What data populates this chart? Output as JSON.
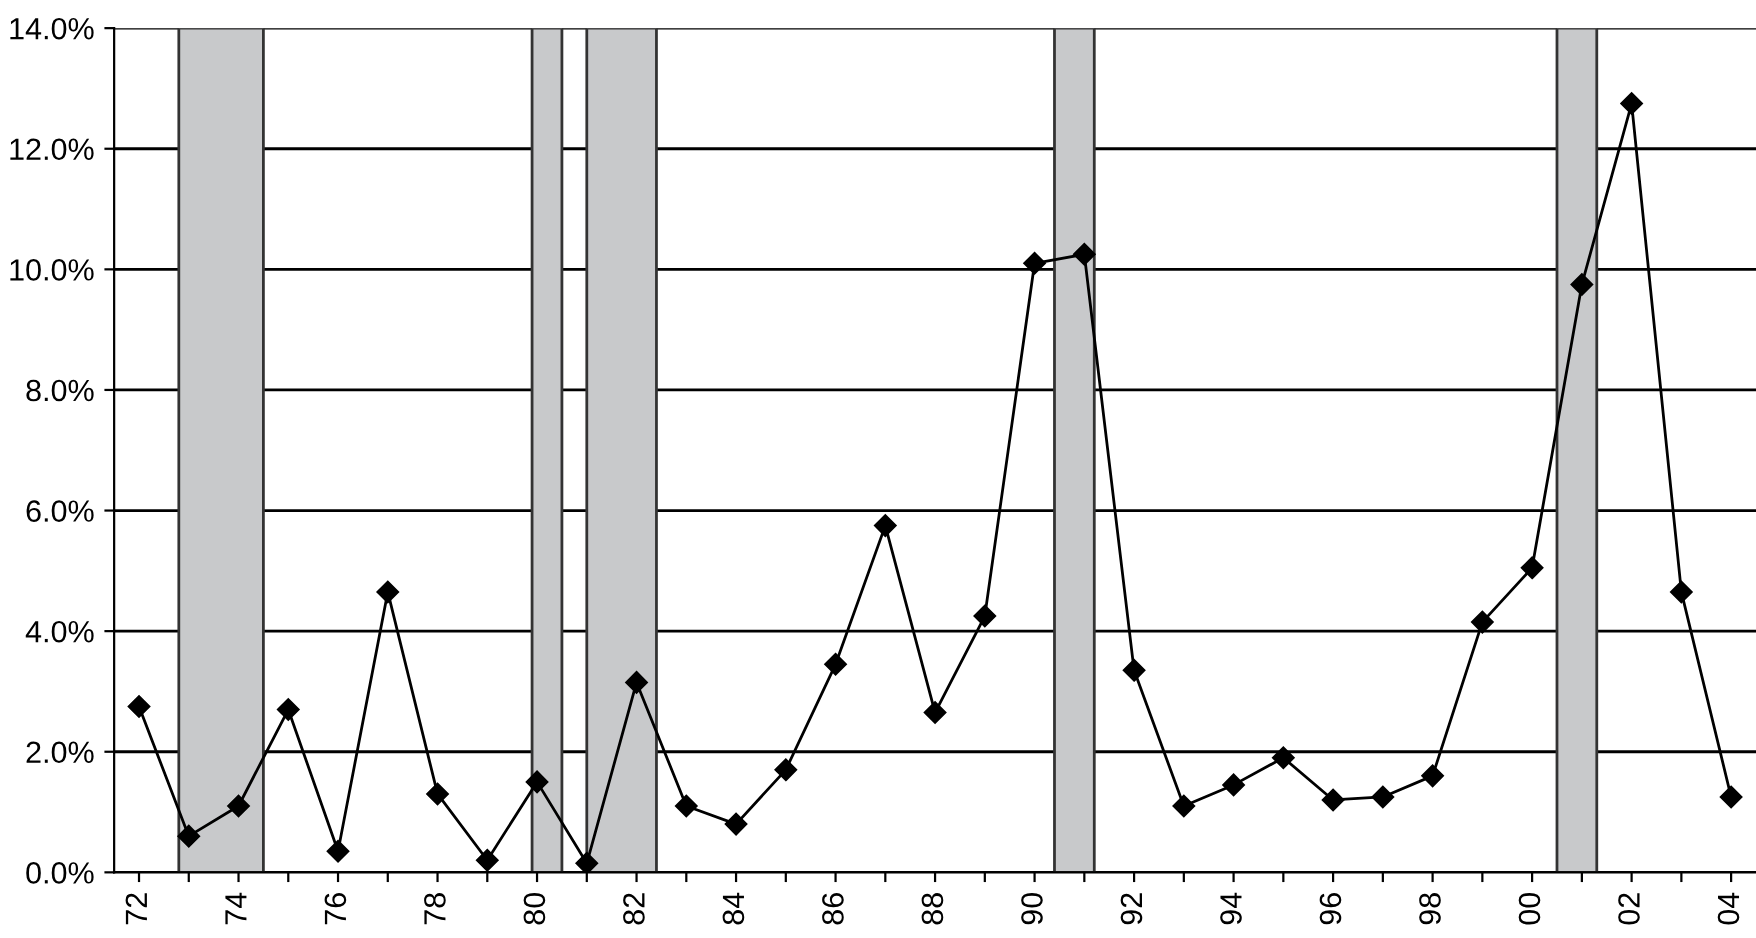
{
  "chart_data": {
    "type": "line",
    "marker": "diamond",
    "line_style": "solid",
    "grid": "y",
    "legend": false,
    "x": [
      1972,
      1973,
      1974,
      1975,
      1976,
      1977,
      1978,
      1979,
      1980,
      1981,
      1982,
      1983,
      1984,
      1985,
      1986,
      1987,
      1988,
      1989,
      1990,
      1991,
      1992,
      1993,
      1994,
      1995,
      1996,
      1997,
      1998,
      1999,
      2000,
      2001,
      2002,
      2003,
      2004
    ],
    "series": [
      {
        "color": "#000000",
        "values": [
          2.75,
          0.6,
          1.1,
          2.7,
          0.35,
          4.65,
          1.3,
          0.2,
          1.5,
          0.15,
          3.15,
          1.1,
          0.8,
          1.7,
          3.45,
          5.75,
          2.65,
          4.25,
          10.1,
          10.25,
          3.35,
          1.1,
          1.45,
          1.9,
          1.2,
          1.25,
          1.6,
          4.15,
          5.05,
          9.75,
          12.75,
          4.65,
          1.25
        ]
      }
    ],
    "xlim": [
      1971.5,
      2004.5
    ],
    "ylim": [
      0,
      14
    ],
    "xticks": [
      {
        "value": 1972,
        "label": "72"
      },
      {
        "value": 1973,
        "label": null
      },
      {
        "value": 1974,
        "label": "74"
      },
      {
        "value": 1975,
        "label": null
      },
      {
        "value": 1976,
        "label": "76"
      },
      {
        "value": 1977,
        "label": null
      },
      {
        "value": 1978,
        "label": "78"
      },
      {
        "value": 1979,
        "label": null
      },
      {
        "value": 1980,
        "label": "80"
      },
      {
        "value": 1981,
        "label": null
      },
      {
        "value": 1982,
        "label": "82"
      },
      {
        "value": 1983,
        "label": null
      },
      {
        "value": 1984,
        "label": "84"
      },
      {
        "value": 1985,
        "label": null
      },
      {
        "value": 1986,
        "label": "86"
      },
      {
        "value": 1987,
        "label": null
      },
      {
        "value": 1988,
        "label": "88"
      },
      {
        "value": 1989,
        "label": null
      },
      {
        "value": 1990,
        "label": "90"
      },
      {
        "value": 1991,
        "label": null
      },
      {
        "value": 1992,
        "label": "92"
      },
      {
        "value": 1993,
        "label": null
      },
      {
        "value": 1994,
        "label": "94"
      },
      {
        "value": 1995,
        "label": null
      },
      {
        "value": 1996,
        "label": "96"
      },
      {
        "value": 1997,
        "label": null
      },
      {
        "value": 1998,
        "label": "98"
      },
      {
        "value": 1999,
        "label": null
      },
      {
        "value": 2000,
        "label": "00"
      },
      {
        "value": 2001,
        "label": null
      },
      {
        "value": 2002,
        "label": "02"
      },
      {
        "value": 2003,
        "label": null
      },
      {
        "value": 2004,
        "label": "04"
      }
    ],
    "yticks": [
      {
        "value": 0,
        "label": "0.0%"
      },
      {
        "value": 2,
        "label": "2.0%"
      },
      {
        "value": 4,
        "label": "4.0%"
      },
      {
        "value": 6,
        "label": "6.0%"
      },
      {
        "value": 8,
        "label": "8.0%"
      },
      {
        "value": 10,
        "label": "10.0%"
      },
      {
        "value": 12,
        "label": "12.0%"
      },
      {
        "value": 14,
        "label": "14.0%"
      }
    ],
    "bands": [
      {
        "axis": "x",
        "from": 1972.8,
        "to": 1974.5,
        "color": "#c8c9cb"
      },
      {
        "axis": "x",
        "from": 1979.9,
        "to": 1980.5,
        "color": "#c8c9cb"
      },
      {
        "axis": "x",
        "from": 1981.0,
        "to": 1982.4,
        "color": "#c8c9cb"
      },
      {
        "axis": "x",
        "from": 1990.4,
        "to": 1991.2,
        "color": "#c8c9cb"
      },
      {
        "axis": "x",
        "from": 2000.5,
        "to": 2001.3,
        "color": "#c8c9cb"
      }
    ]
  }
}
